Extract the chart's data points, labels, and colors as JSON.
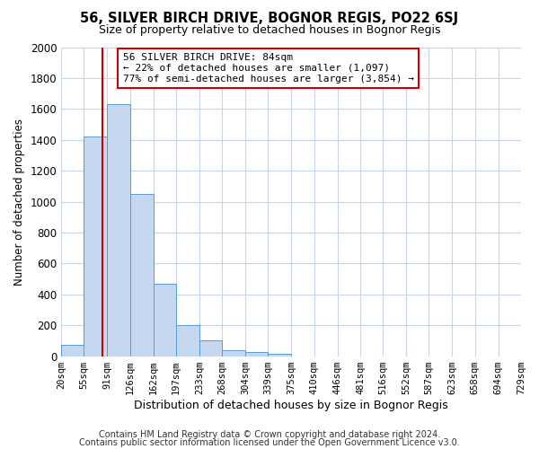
{
  "title1": "56, SILVER BIRCH DRIVE, BOGNOR REGIS, PO22 6SJ",
  "title2": "Size of property relative to detached houses in Bognor Regis",
  "xlabel": "Distribution of detached houses by size in Bognor Regis",
  "ylabel": "Number of detached properties",
  "footer1": "Contains HM Land Registry data © Crown copyright and database right 2024.",
  "footer2": "Contains public sector information licensed under the Open Government Licence v3.0.",
  "annotation_title": "56 SILVER BIRCH DRIVE: 84sqm",
  "annotation_line1": "← 22% of detached houses are smaller (1,097)",
  "annotation_line2": "77% of semi-detached houses are larger (3,854) →",
  "property_size": 84,
  "bins": [
    20,
    55,
    91,
    126,
    162,
    197,
    233,
    268,
    304,
    339,
    375,
    410,
    446,
    481,
    516,
    552,
    587,
    623,
    658,
    694,
    729
  ],
  "values": [
    75,
    1420,
    1630,
    1050,
    470,
    200,
    100,
    40,
    25,
    15,
    0,
    0,
    0,
    0,
    0,
    0,
    0,
    0,
    0,
    0
  ],
  "bar_color": "#c5d8f0",
  "bar_edge_color": "#5b9bd5",
  "vline_color": "#cc0000",
  "annotation_box_color": "#ffffff",
  "annotation_box_edge": "#cc0000",
  "grid_color": "#c8d4e8",
  "plot_bg_color": "#ffffff",
  "fig_bg_color": "#ffffff",
  "ylim": [
    0,
    2000
  ],
  "yticks": [
    0,
    200,
    400,
    600,
    800,
    1000,
    1200,
    1400,
    1600,
    1800,
    2000
  ]
}
